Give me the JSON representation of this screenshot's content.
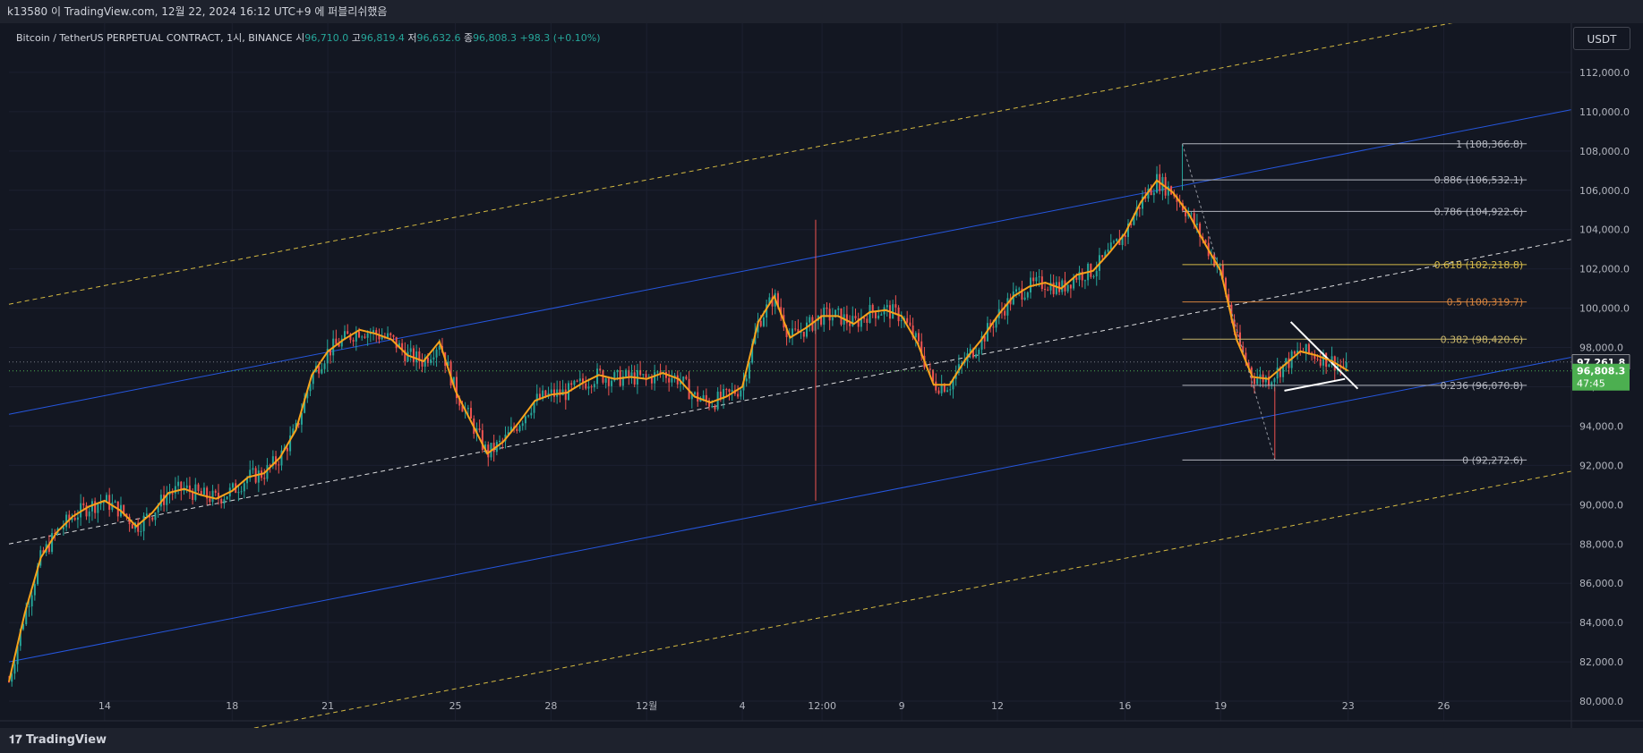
{
  "header": {
    "text": "k13580 이 TradingView.com, 12월 22, 2024 16:12 UTC+9 에 퍼블리쉬했음"
  },
  "legend": {
    "symbol": "Bitcoin / TetherUS PERPETUAL CONTRACT, 1시, BINANCE",
    "open_label": "시",
    "open": "96,710.0",
    "high_label": "고",
    "high": "96,819.4",
    "low_label": "저",
    "low": "96,632.6",
    "close_label": "종",
    "close": "96,808.3",
    "change": "+98.3 (+0.10%)"
  },
  "currency_button": "USDT",
  "footer": {
    "brand": "TradingView"
  },
  "colors": {
    "background": "#131722",
    "panel": "#1e222d",
    "up": "#26a69a",
    "down": "#ef5350",
    "ma": "#f7a21b",
    "channel_blue": "#2962ff",
    "channel_yellow": "#f5d547",
    "price_badge": "#4caf50"
  },
  "chart_data": {
    "type": "line",
    "y_axis": {
      "ticks": [
        "112,000.0",
        "110,000.0",
        "108,000.0",
        "106,000.0",
        "104,000.0",
        "102,000.0",
        "100,000.0",
        "98,000.0",
        "96,000.0",
        "94,000.0",
        "92,000.0",
        "90,000.0",
        "88,000.0",
        "86,000.0",
        "84,000.0",
        "82,000.0",
        "80,000.0"
      ],
      "tick_values": [
        112000,
        110000,
        108000,
        106000,
        104000,
        102000,
        100000,
        98000,
        96000,
        94000,
        92000,
        90000,
        88000,
        86000,
        84000,
        82000,
        80000
      ],
      "range": [
        79000,
        114500
      ]
    },
    "x_axis": {
      "labels": [
        "14",
        "18",
        "21",
        "25",
        "28",
        "12월",
        "4",
        "12:00",
        "9",
        "12",
        "16",
        "19",
        "23",
        "26"
      ],
      "label_days": [
        14,
        18,
        21,
        25,
        28,
        31,
        34,
        36.5,
        39,
        42,
        46,
        49,
        53,
        56
      ],
      "range": [
        11,
        60
      ]
    },
    "fib_levels": [
      {
        "label": "1 (108,366.8)",
        "value": 108366.8
      },
      {
        "label": "0.886 (106,532.1)",
        "value": 106532.1
      },
      {
        "label": "0.786 (104,922.6)",
        "value": 104922.6
      },
      {
        "label": "0.618 (102,218.8)",
        "value": 102218.8
      },
      {
        "label": "0.5 (100,319.7)",
        "value": 100319.7
      },
      {
        "label": "0.382 (98,420.6)",
        "value": 98420.6
      },
      {
        "label": "0.236 (96,070.8)",
        "value": 96070.8
      },
      {
        "label": "0 (92,272.6)",
        "value": 92272.6
      }
    ],
    "price_labels": {
      "marker": "97,261.8",
      "marker_value": 97261.8,
      "last": "96,808.3",
      "last_value": 96808.3,
      "countdown": "47:45"
    },
    "series": [
      {
        "x": [
          11,
          11.5,
          12,
          12.5,
          13,
          13.5,
          14,
          14.5,
          15,
          15.5,
          16,
          16.5,
          17,
          17.5,
          18,
          18.5,
          19,
          19.5,
          20,
          20.5,
          21,
          21.5,
          22,
          22.5,
          23,
          23.5,
          24,
          24.5,
          25,
          25.5,
          26,
          26.5,
          27,
          27.5,
          28,
          28.5,
          29,
          29.5,
          30,
          30.5,
          31,
          31.5,
          32,
          32.5,
          33,
          33.5,
          34,
          34.5,
          35,
          35.5,
          36,
          36.5,
          37,
          37.5,
          38,
          38.5,
          39,
          39.5,
          40,
          40.5,
          41,
          41.5,
          42,
          42.5,
          43,
          43.5,
          44,
          44.5,
          45,
          45.5,
          46,
          46.5,
          47,
          47.5,
          48,
          48.5,
          49,
          49.5,
          50,
          50.5,
          51,
          51.5,
          52,
          52.5,
          53
        ],
        "values": [
          81000,
          84500,
          87300,
          88600,
          89400,
          89900,
          90200,
          89700,
          88900,
          89600,
          90600,
          90800,
          90500,
          90300,
          90700,
          91400,
          91600,
          92400,
          93800,
          96600,
          97800,
          98400,
          98900,
          98700,
          98400,
          97600,
          97300,
          98300,
          95800,
          94200,
          92600,
          93200,
          94200,
          95300,
          95600,
          95700,
          96200,
          96600,
          96400,
          96500,
          96400,
          96700,
          96400,
          95500,
          95200,
          95500,
          96000,
          99300,
          100600,
          98500,
          99000,
          99600,
          99600,
          99200,
          99800,
          99900,
          99600,
          98200,
          96100,
          96100,
          97400,
          98400,
          99600,
          100600,
          101100,
          101300,
          101000,
          101700,
          101900,
          102800,
          103800,
          105400,
          106500,
          105900,
          104800,
          103300,
          101900,
          98400,
          96500,
          96400,
          97100,
          97800,
          97600,
          97300,
          96808
        ]
      }
    ]
  }
}
